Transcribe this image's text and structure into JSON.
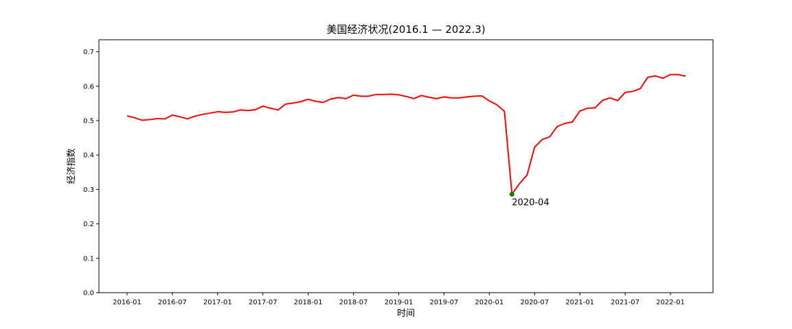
{
  "chart_data": {
    "type": "line",
    "title": "美国经济状况(2016.1 — 2022.3)",
    "xlabel": "时间",
    "ylabel": "经济指数",
    "ylim": [
      0,
      0.7
    ],
    "yticks": [
      "0.0",
      "0.1",
      "0.2",
      "0.3",
      "0.4",
      "0.5",
      "0.6",
      "0.7"
    ],
    "xticks": [
      "2016-01",
      "2016-07",
      "2017-01",
      "2017-07",
      "2018-01",
      "2018-07",
      "2019-01",
      "2019-07",
      "2020-01",
      "2020-07",
      "2021-01",
      "2021-07",
      "2022-01"
    ],
    "x": [
      "2016-01",
      "2016-02",
      "2016-03",
      "2016-04",
      "2016-05",
      "2016-06",
      "2016-07",
      "2016-08",
      "2016-09",
      "2016-10",
      "2016-11",
      "2016-12",
      "2017-01",
      "2017-02",
      "2017-03",
      "2017-04",
      "2017-05",
      "2017-06",
      "2017-07",
      "2017-08",
      "2017-09",
      "2017-10",
      "2017-11",
      "2017-12",
      "2018-01",
      "2018-02",
      "2018-03",
      "2018-04",
      "2018-05",
      "2018-06",
      "2018-07",
      "2018-08",
      "2018-09",
      "2018-10",
      "2018-11",
      "2018-12",
      "2019-01",
      "2019-02",
      "2019-03",
      "2019-04",
      "2019-05",
      "2019-06",
      "2019-07",
      "2019-08",
      "2019-09",
      "2019-10",
      "2019-11",
      "2019-12",
      "2020-01",
      "2020-02",
      "2020-03",
      "2020-04",
      "2020-05",
      "2020-06",
      "2020-07",
      "2020-08",
      "2020-09",
      "2020-10",
      "2020-11",
      "2020-12",
      "2021-01",
      "2021-02",
      "2021-03",
      "2021-04",
      "2021-05",
      "2021-06",
      "2021-07",
      "2021-08",
      "2021-09",
      "2021-10",
      "2021-11",
      "2021-12",
      "2022-01",
      "2022-02",
      "2022-03"
    ],
    "series": [
      {
        "color": "#ff0000",
        "values": [
          0.514,
          0.508,
          0.501,
          0.503,
          0.506,
          0.505,
          0.516,
          0.511,
          0.505,
          0.513,
          0.518,
          0.522,
          0.526,
          0.524,
          0.525,
          0.531,
          0.529,
          0.532,
          0.542,
          0.536,
          0.531,
          0.548,
          0.551,
          0.555,
          0.562,
          0.556,
          0.553,
          0.563,
          0.567,
          0.564,
          0.574,
          0.571,
          0.571,
          0.576,
          0.576,
          0.577,
          0.575,
          0.57,
          0.564,
          0.573,
          0.568,
          0.564,
          0.569,
          0.566,
          0.566,
          0.569,
          0.571,
          0.572,
          0.557,
          0.546,
          0.527,
          0.286,
          0.317,
          0.342,
          0.423,
          0.445,
          0.453,
          0.483,
          0.492,
          0.496,
          0.528,
          0.536,
          0.537,
          0.559,
          0.566,
          0.558,
          0.582,
          0.585,
          0.593,
          0.626,
          0.63,
          0.623,
          0.634,
          0.634,
          0.629
        ]
      }
    ],
    "annotation": {
      "x": "2020-04",
      "y": 0.286,
      "label": "2020-04",
      "marker_color": "#008000"
    }
  }
}
